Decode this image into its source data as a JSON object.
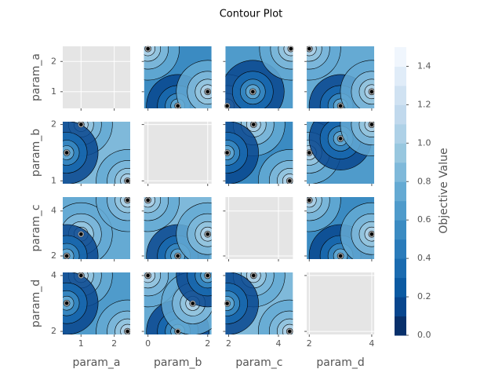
{
  "chart_data": {
    "type": "contour-matrix",
    "title": "Contour Plot",
    "colorbar_label": "Objective Value",
    "clim": [
      0,
      1.5
    ],
    "cticks": [
      {
        "value": 0,
        "label": "0.0"
      },
      {
        "value": 0.2,
        "label": "0.2"
      },
      {
        "value": 0.4,
        "label": "0.4"
      },
      {
        "value": 0.6,
        "label": "0.6"
      },
      {
        "value": 0.8,
        "label": "0.8"
      },
      {
        "value": 1.0,
        "label": "1.0"
      },
      {
        "value": 1.2,
        "label": "1.2"
      },
      {
        "value": 1.4,
        "label": "1.4"
      }
    ],
    "colors": [
      "#08306b",
      "#08468e",
      "#0b5aa2",
      "#1a6bb0",
      "#2a7bba",
      "#3b8bc2",
      "#4f9bcb",
      "#65aad3",
      "#7fb9da",
      "#98c7df",
      "#aed1e7",
      "#c1d9ed",
      "#d0e2f2",
      "#e0ecf8",
      "#f0f6fd"
    ],
    "params": [
      {
        "name": "param_a",
        "xlim": [
          0.45,
          2.48
        ],
        "xticks": [
          1,
          2
        ],
        "ylim": [
          0.45,
          2.5
        ],
        "yticks": [
          1,
          2
        ]
      },
      {
        "name": "param_b",
        "xlim": [
          -0.13,
          2.13
        ],
        "xticks": [
          0,
          2
        ],
        "ylim": [
          0.95,
          2.05
        ],
        "yticks": [
          1,
          2
        ]
      },
      {
        "name": "param_c",
        "xlim": [
          1.87,
          4.58
        ],
        "xticks": [
          2,
          4
        ],
        "ylim": [
          1.86,
          4.62
        ],
        "yticks": [
          2,
          4
        ]
      },
      {
        "name": "param_d",
        "xlim": [
          1.92,
          4.08
        ],
        "xticks": [
          2,
          4
        ],
        "ylim": [
          1.89,
          4.11
        ],
        "yticks": [
          2,
          4
        ]
      }
    ],
    "panels": [
      {
        "x": "param_b",
        "y": "param_a",
        "points_x": [
          0,
          1,
          2
        ],
        "points_y": [
          2.42,
          0.53,
          1
        ]
      },
      {
        "x": "param_c",
        "y": "param_a",
        "points_x": [
          1.94,
          2.97,
          4.5
        ],
        "points_y": [
          0.53,
          1,
          2.42
        ]
      },
      {
        "x": "param_d",
        "y": "param_a",
        "points_x": [
          2,
          3,
          4
        ],
        "points_y": [
          2.42,
          0.53,
          1
        ]
      },
      {
        "x": "param_a",
        "y": "param_b",
        "points_x": [
          1,
          0.57,
          2.4
        ],
        "points_y": [
          2,
          1.5,
          1
        ]
      },
      {
        "x": "param_c",
        "y": "param_b",
        "points_x": [
          3,
          1.94,
          4.45
        ],
        "points_y": [
          2,
          1.5,
          1
        ]
      },
      {
        "x": "param_d",
        "y": "param_b",
        "points_x": [
          2,
          3,
          4
        ],
        "points_y": [
          1.5,
          1.75,
          2
        ]
      },
      {
        "x": "param_a",
        "y": "param_c",
        "points_x": [
          1,
          0.57,
          2.4
        ],
        "points_y": [
          2.97,
          2,
          4.48
        ]
      },
      {
        "x": "param_b",
        "y": "param_c",
        "points_x": [
          0,
          1,
          2
        ],
        "points_y": [
          4.48,
          2,
          2.97
        ]
      },
      {
        "x": "param_d",
        "y": "param_c",
        "points_x": [
          2,
          3,
          4
        ],
        "points_y": [
          4.48,
          2,
          2.97
        ]
      },
      {
        "x": "param_a",
        "y": "param_d",
        "points_x": [
          1,
          0.57,
          2.4
        ],
        "points_y": [
          4,
          3.01,
          2
        ]
      },
      {
        "x": "param_b",
        "y": "param_d",
        "points_x": [
          0,
          1,
          1.5,
          2
        ],
        "points_y": [
          4,
          2,
          3,
          4
        ]
      },
      {
        "x": "param_c",
        "y": "param_d",
        "points_x": [
          3,
          1.94,
          4.45
        ],
        "points_y": [
          4,
          3,
          2
        ]
      }
    ]
  }
}
